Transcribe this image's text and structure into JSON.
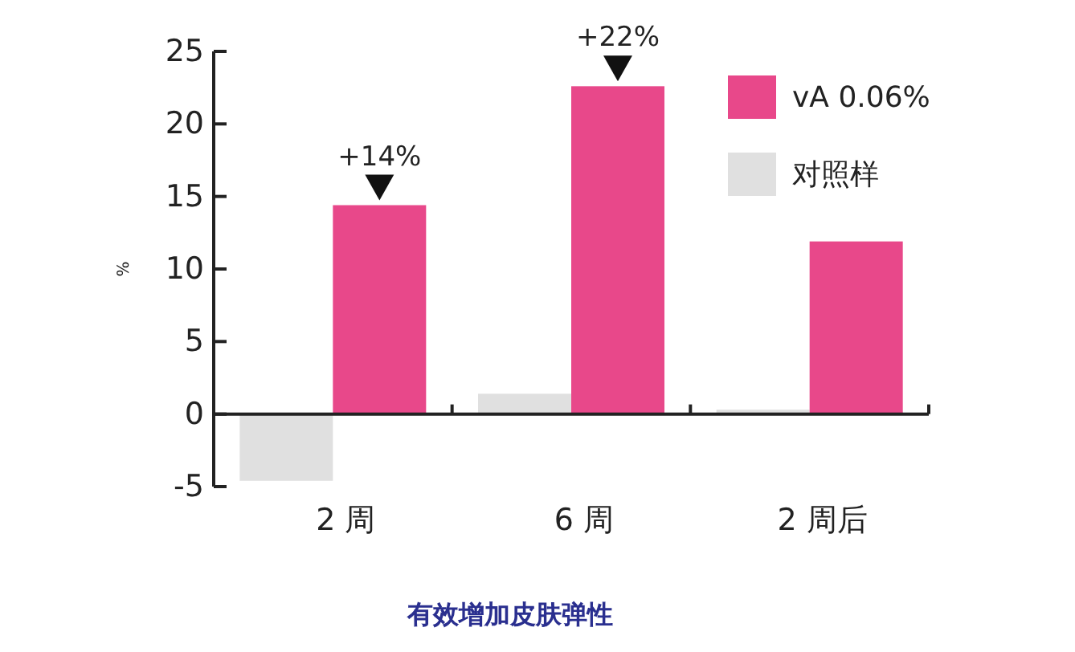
{
  "chart_data": {
    "type": "bar",
    "title": "有效增加皮肤弹性",
    "ylabel": "%",
    "categories": [
      "2 周",
      "6 周",
      "2 周后"
    ],
    "series": [
      {
        "name": "对照样",
        "color": "#e0e0e0",
        "values": [
          -4.6,
          1.4,
          0.3
        ]
      },
      {
        "name": "vA 0.06%",
        "color": "#e8488a",
        "values": [
          14.4,
          22.6,
          11.9
        ]
      }
    ],
    "ylim": [
      -5,
      25
    ],
    "yticks": [
      -5,
      0,
      5,
      10,
      15,
      20,
      25
    ],
    "annotations": [
      {
        "text": "+14%",
        "x": "2 周",
        "y": 14.4
      },
      {
        "text": "+22%",
        "x": "6 周",
        "y": 22.6
      }
    ],
    "legend": "top right"
  }
}
